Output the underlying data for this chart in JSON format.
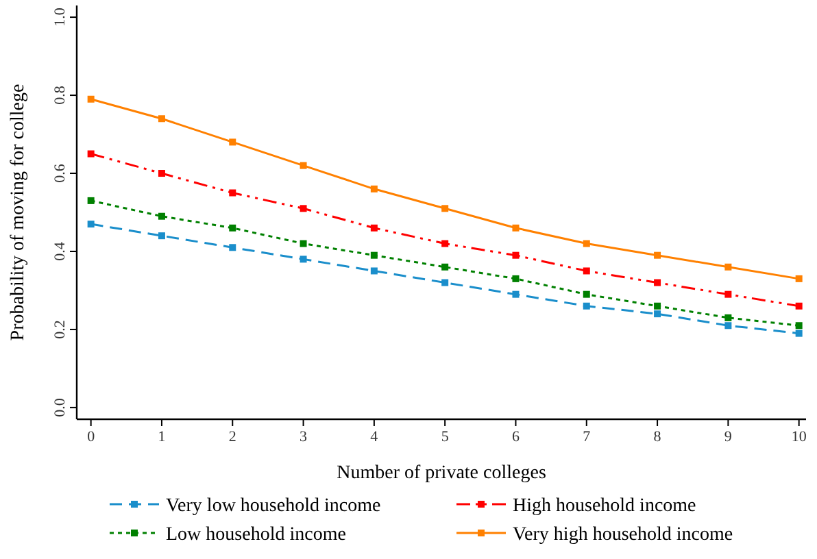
{
  "chart_data": {
    "type": "line",
    "xlabel": "Number of private colleges",
    "ylabel": "Probability of moving for college",
    "x": [
      0,
      1,
      2,
      3,
      4,
      5,
      6,
      7,
      8,
      9,
      10
    ],
    "xlim": [
      -0.2,
      10.1
    ],
    "xticks": [
      0,
      1,
      2,
      3,
      4,
      5,
      6,
      7,
      8,
      9,
      10
    ],
    "ylim": [
      -0.03,
      1.03
    ],
    "yticks": [
      {
        "value": 0,
        "label": "0.0"
      },
      0.2,
      0.4,
      0.6,
      0.8,
      {
        "value": 1,
        "label": "1.0"
      }
    ],
    "grid": false,
    "legend": "bottom",
    "marker": "square",
    "series": [
      {
        "name": "Very low household income",
        "color": "#1a8ecb",
        "line_style": "dashed",
        "values": [
          0.47,
          0.44,
          0.41,
          0.38,
          0.35,
          0.32,
          0.29,
          0.26,
          0.24,
          0.21,
          0.19
        ]
      },
      {
        "name": "High household income",
        "color": "#ff0000",
        "line_style": "dashdot",
        "values": [
          0.65,
          0.6,
          0.55,
          0.51,
          0.46,
          0.42,
          0.39,
          0.35,
          0.32,
          0.29,
          0.26
        ]
      },
      {
        "name": "Low household income",
        "color": "#008000",
        "line_style": "dotted",
        "values": [
          0.53,
          0.49,
          0.46,
          0.42,
          0.39,
          0.36,
          0.33,
          0.29,
          0.26,
          0.23,
          0.21
        ]
      },
      {
        "name": "Very high household income",
        "color": "#ff8000",
        "line_style": "solid",
        "values": [
          0.79,
          0.74,
          0.68,
          0.62,
          0.56,
          0.51,
          0.46,
          0.42,
          0.39,
          0.36,
          0.33
        ]
      }
    ]
  }
}
